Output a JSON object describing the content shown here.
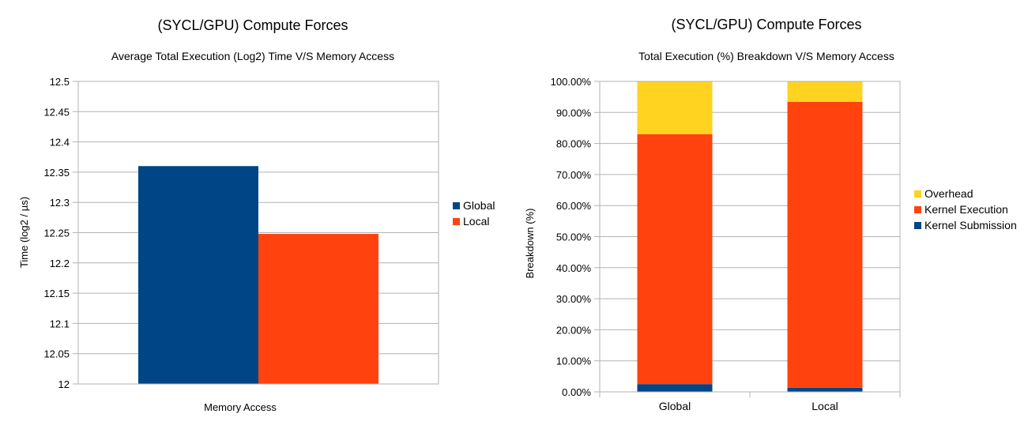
{
  "chart_data": [
    {
      "type": "bar",
      "title": "(SYCL/GPU) Compute Forces",
      "subtitle": "Average Total Execution (Log2) Time V/S Memory Access",
      "xlabel": "Memory Access",
      "ylabel": "Time (log2 / µs)",
      "ylim": [
        12,
        12.5
      ],
      "yticks": [
        "12",
        "12.05",
        "12.1",
        "12.15",
        "12.2",
        "12.25",
        "12.3",
        "12.35",
        "12.4",
        "12.45",
        "12.5"
      ],
      "ytick_values": [
        12,
        12.05,
        12.1,
        12.15,
        12.2,
        12.25,
        12.3,
        12.35,
        12.4,
        12.45,
        12.5
      ],
      "categories": [
        ""
      ],
      "series": [
        {
          "name": "Global",
          "color": "#004586",
          "values": [
            12.36
          ]
        },
        {
          "name": "Local",
          "color": "#ff420e",
          "values": [
            12.248
          ]
        }
      ],
      "grid": true,
      "legend": "right"
    },
    {
      "type": "bar",
      "stacked": true,
      "title": "(SYCL/GPU) Compute Forces",
      "subtitle": "Total Execution (%) Breakdown V/S Memory Access",
      "xlabel": "",
      "ylabel": "Breakdown (%)",
      "ylim": [
        0,
        100
      ],
      "yticks": [
        "0.00%",
        "10.00%",
        "20.00%",
        "30.00%",
        "40.00%",
        "50.00%",
        "60.00%",
        "70.00%",
        "80.00%",
        "90.00%",
        "100.00%"
      ],
      "ytick_values": [
        0,
        10,
        20,
        30,
        40,
        50,
        60,
        70,
        80,
        90,
        100
      ],
      "categories": [
        "Global",
        "Local"
      ],
      "series": [
        {
          "name": "Kernel Submission",
          "color": "#004586",
          "values": [
            2.5,
            1.3
          ]
        },
        {
          "name": "Kernel Execution",
          "color": "#ff420e",
          "values": [
            80.5,
            92.1
          ]
        },
        {
          "name": "Overhead",
          "color": "#ffd320",
          "values": [
            17.0,
            6.6
          ]
        }
      ],
      "legend_order": [
        "Overhead",
        "Kernel Execution",
        "Kernel Submission"
      ],
      "grid": true,
      "legend": "right"
    }
  ]
}
